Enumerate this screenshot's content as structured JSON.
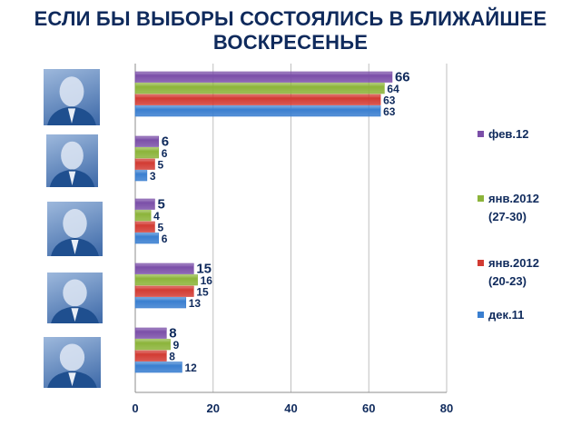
{
  "chart_data": {
    "type": "bar",
    "orientation": "horizontal",
    "title": "ЕСЛИ БЫ ВЫБОРЫ СОСТОЯЛИСЬ В БЛИЖАЙШЕЕ\nВОСКРЕСЕНЬЕ",
    "categories": [
      "",
      "",
      "",
      "",
      ""
    ],
    "series": [
      {
        "name": "фев.12",
        "color": "#7b4fa8",
        "values": [
          66,
          6,
          5,
          15,
          8
        ]
      },
      {
        "name": "янв.2012\n(27-30)",
        "color": "#8cb43a",
        "values": [
          64,
          6,
          4,
          16,
          9
        ]
      },
      {
        "name": "янв.2012\n(20-23)",
        "color": "#d23b33",
        "values": [
          63,
          5,
          5,
          15,
          8
        ]
      },
      {
        "name": "дек.11",
        "color": "#3a7fd0",
        "values": [
          63,
          3,
          6,
          13,
          12
        ]
      }
    ],
    "xlim": [
      0,
      80
    ],
    "xticks": [
      "0",
      "20",
      "40",
      "60",
      "80"
    ],
    "grid": true,
    "legend_position": "right",
    "data_labels": true,
    "category_images": "candidate photos (blue-tinted)"
  }
}
